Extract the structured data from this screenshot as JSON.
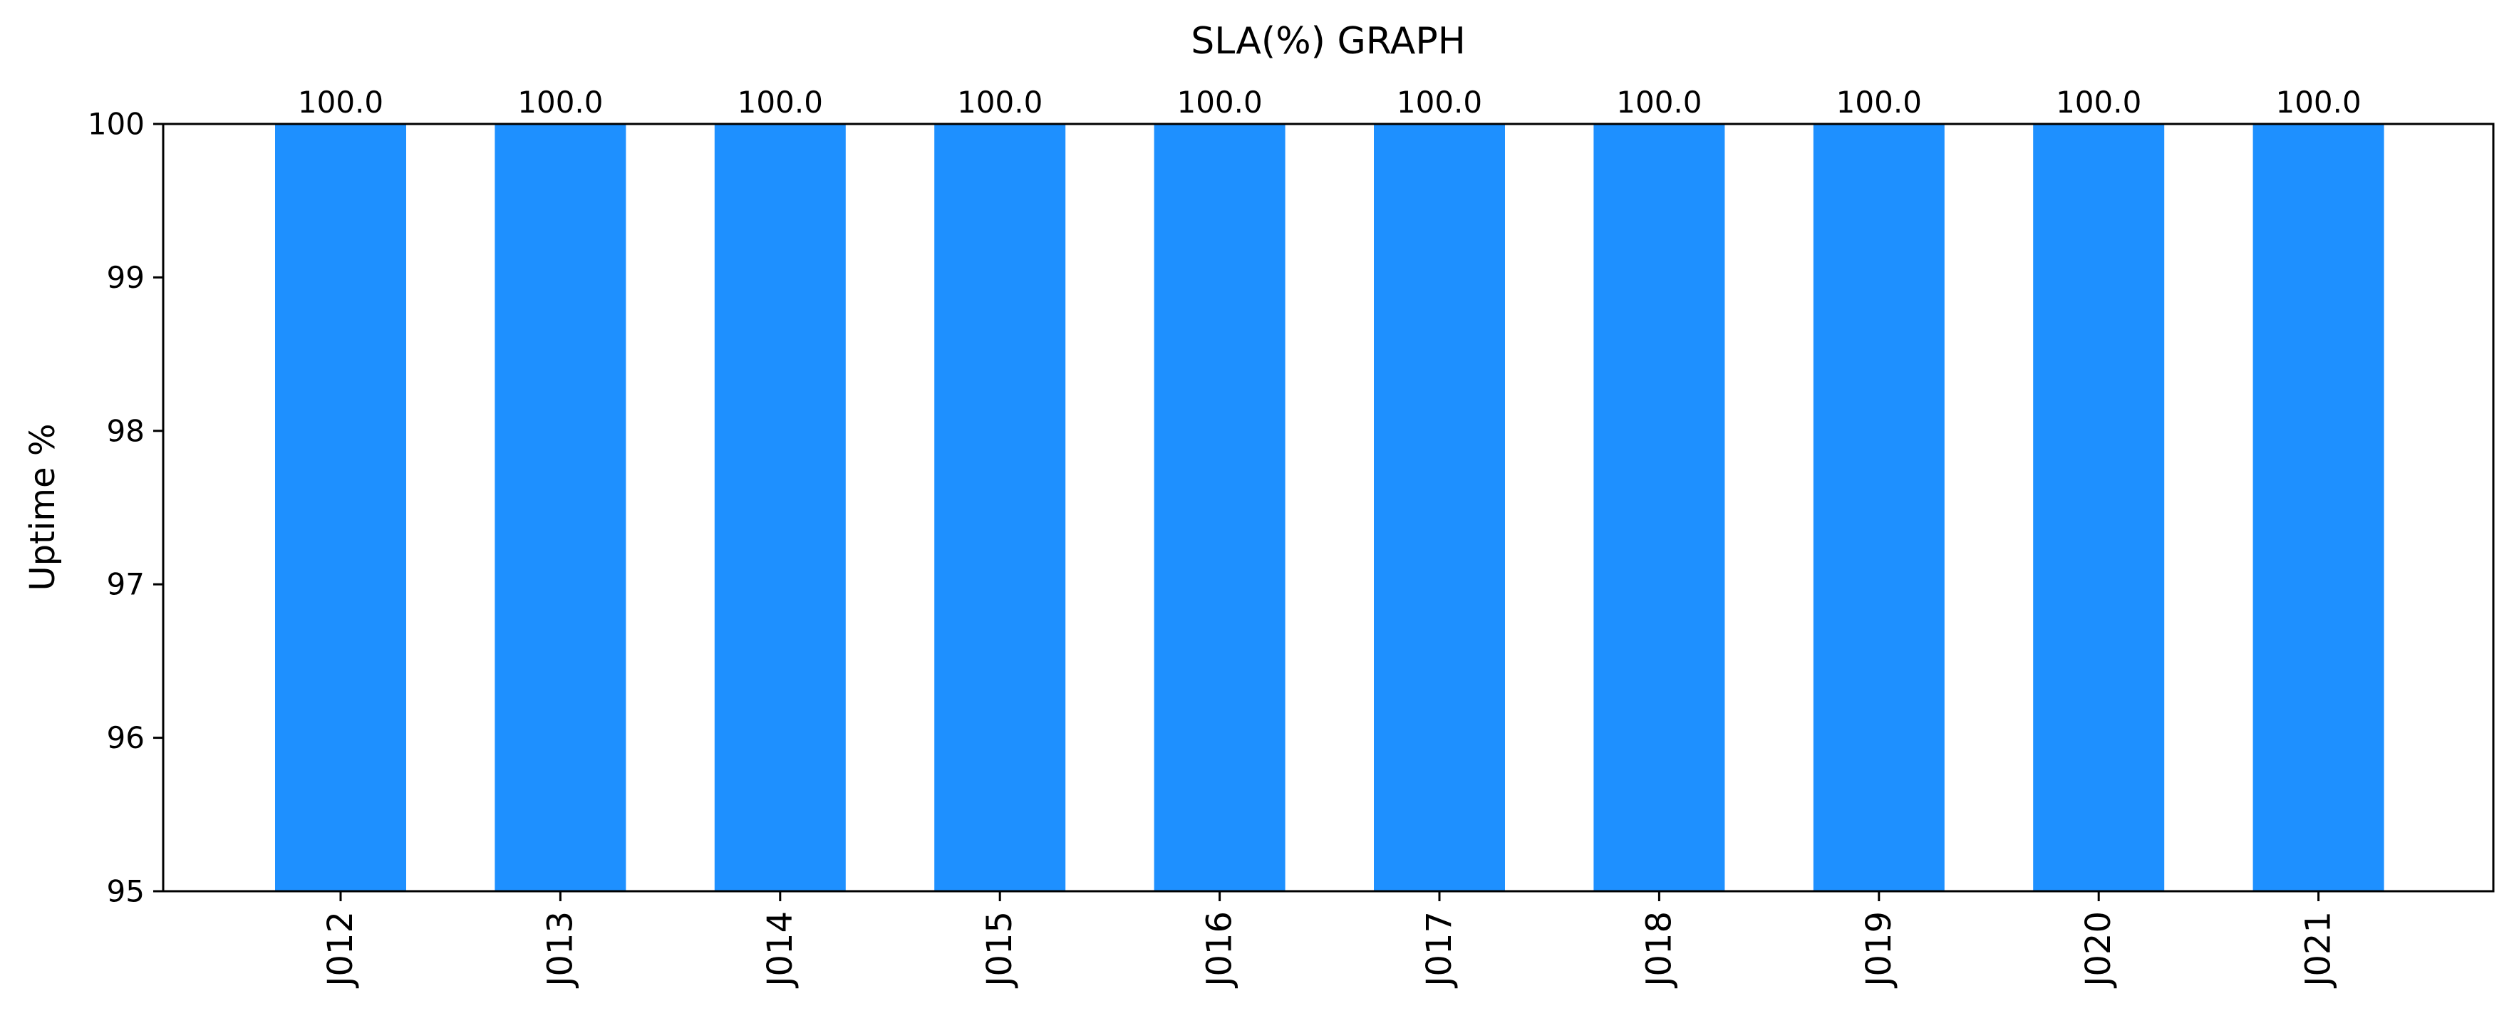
{
  "chart_data": {
    "type": "bar",
    "title": "SLA(%) GRAPH",
    "xlabel": "",
    "ylabel": "Uptime %",
    "ylim": [
      95,
      100
    ],
    "yticks": [
      "95",
      "96",
      "97",
      "98",
      "99",
      "100"
    ],
    "categories": [
      "J012",
      "J013",
      "J014",
      "J015",
      "J016",
      "J017",
      "J018",
      "J019",
      "J020",
      "J021"
    ],
    "values": [
      100.0,
      100.0,
      100.0,
      100.0,
      100.0,
      100.0,
      100.0,
      100.0,
      100.0,
      100.0
    ],
    "data_labels": [
      "100.0",
      "100.0",
      "100.0",
      "100.0",
      "100.0",
      "100.0",
      "100.0",
      "100.0",
      "100.0",
      "100.0"
    ],
    "bar_color": "#1e90ff",
    "grid": false,
    "legend": "none"
  }
}
